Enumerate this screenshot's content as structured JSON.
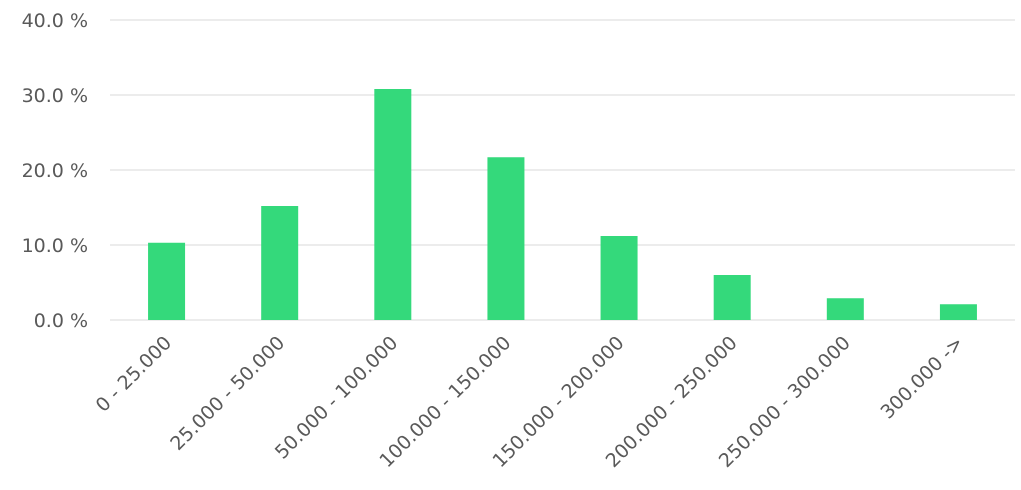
{
  "chart_data": {
    "type": "bar",
    "categories": [
      "0 - 25.000",
      "25.000 - 50.000",
      "50.000 - 100.000",
      "100.000 - 150.000",
      "150.000 - 200.000",
      "200.000 - 250.000",
      "250.000 - 300.000",
      "300.000 ->"
    ],
    "values": [
      10.3,
      15.2,
      30.8,
      21.7,
      11.2,
      6.0,
      2.9,
      2.1
    ],
    "ylim": [
      0,
      40
    ],
    "yticks": [
      0,
      10,
      20,
      30,
      40
    ],
    "ytick_labels": [
      "0.0 %",
      "10.0 %",
      "20.0 %",
      "30.0 %",
      "40.0 %"
    ],
    "grid": true,
    "legend": false,
    "bar_color": "#34d97b",
    "grid_color": "#d9d9d9",
    "text_color": "#595959"
  }
}
